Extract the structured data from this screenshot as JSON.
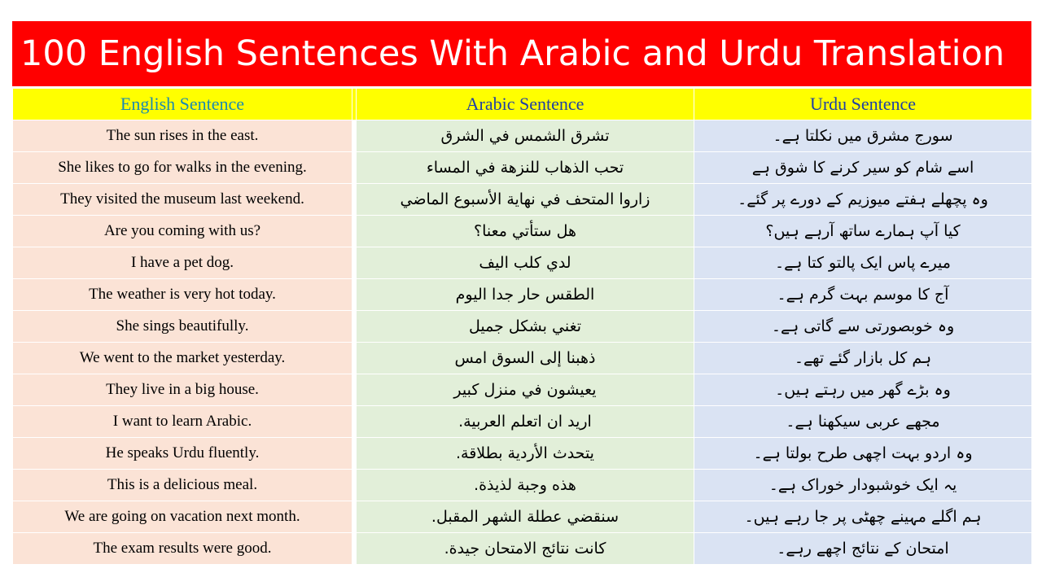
{
  "title": "100 English Sentences With Arabic and Urdu Translation",
  "headers": {
    "english": "English Sentence",
    "arabic": "Arabic Sentence",
    "urdu": "Urdu  Sentence"
  },
  "rows": [
    {
      "english": "The sun rises in the east.",
      "arabic": "تشرق الشمس في الشرق",
      "urdu": "سورج مشرق میں نکلتا ہے۔"
    },
    {
      "english": "She likes to go for walks in the evening.",
      "arabic": "تحب الذهاب للنزهة في المساء",
      "urdu": "اسے شام کو سیر کرنے کا شوق ہے"
    },
    {
      "english": "They visited the museum last weekend.",
      "arabic": "زاروا المتحف في نهاية الأسبوع الماضي",
      "urdu": "وہ پچھلے ہفتے میوزیم کے دورے پر گئے۔"
    },
    {
      "english": "Are you coming with us?",
      "arabic": "هل ستأتي معنا؟",
      "urdu": "کیا آپ ہمارے ساتھ آرہے ہیں؟"
    },
    {
      "english": "I have a pet dog.",
      "arabic": "لدي كلب اليف",
      "urdu": "میرے پاس ایک پالتو کتا ہے۔"
    },
    {
      "english": "The weather is very hot today.",
      "arabic": "الطقس حار جدا اليوم",
      "urdu": "آج کا موسم بہت گرم ہے۔"
    },
    {
      "english": "She sings beautifully.",
      "arabic": "تغني بشكل جميل",
      "urdu": "وہ خوبصورتی سے گاتی ہے۔"
    },
    {
      "english": "We went to the market yesterday.",
      "arabic": "ذهبنا إلى السوق امس",
      "urdu": "ہم کل بازار گئے تھے۔"
    },
    {
      "english": "They live in a big house.",
      "arabic": "يعيشون في منزل كبير",
      "urdu": "وہ بڑے گھر میں رہتے ہیں۔"
    },
    {
      "english": "I want to learn Arabic.",
      "arabic": "اريد ان اتعلم العربية.",
      "urdu": "مجھے عربی سیکھنا ہے۔"
    },
    {
      "english": "He speaks Urdu fluently.",
      "arabic": "يتحدث الأردية بطلاقة.",
      "urdu": "وہ اردو بہت اچھی طرح بولتا ہے۔"
    },
    {
      "english": "This is a delicious meal.",
      "arabic": "هذه وجبة لذيذة.",
      "urdu": "یہ ایک خوشبودار خوراک ہے۔"
    },
    {
      "english": "We are going on vacation next month.",
      "arabic": "سنقضي عطلة الشهر المقبل.",
      "urdu": "ہم اگلے مہینے چھٹی پر جا رہے ہیں۔"
    },
    {
      "english": "The exam results were good.",
      "arabic": "كانت نتائج الامتحان جيدة.",
      "urdu": "امتحان کے نتائج اچھے رہے۔"
    }
  ],
  "colors": {
    "title_bg": "#ff0000",
    "header_bg": "#ffff00",
    "english_bg": "#fbe3d6",
    "arabic_bg": "#e2efd9",
    "urdu_bg": "#dae3f3"
  }
}
